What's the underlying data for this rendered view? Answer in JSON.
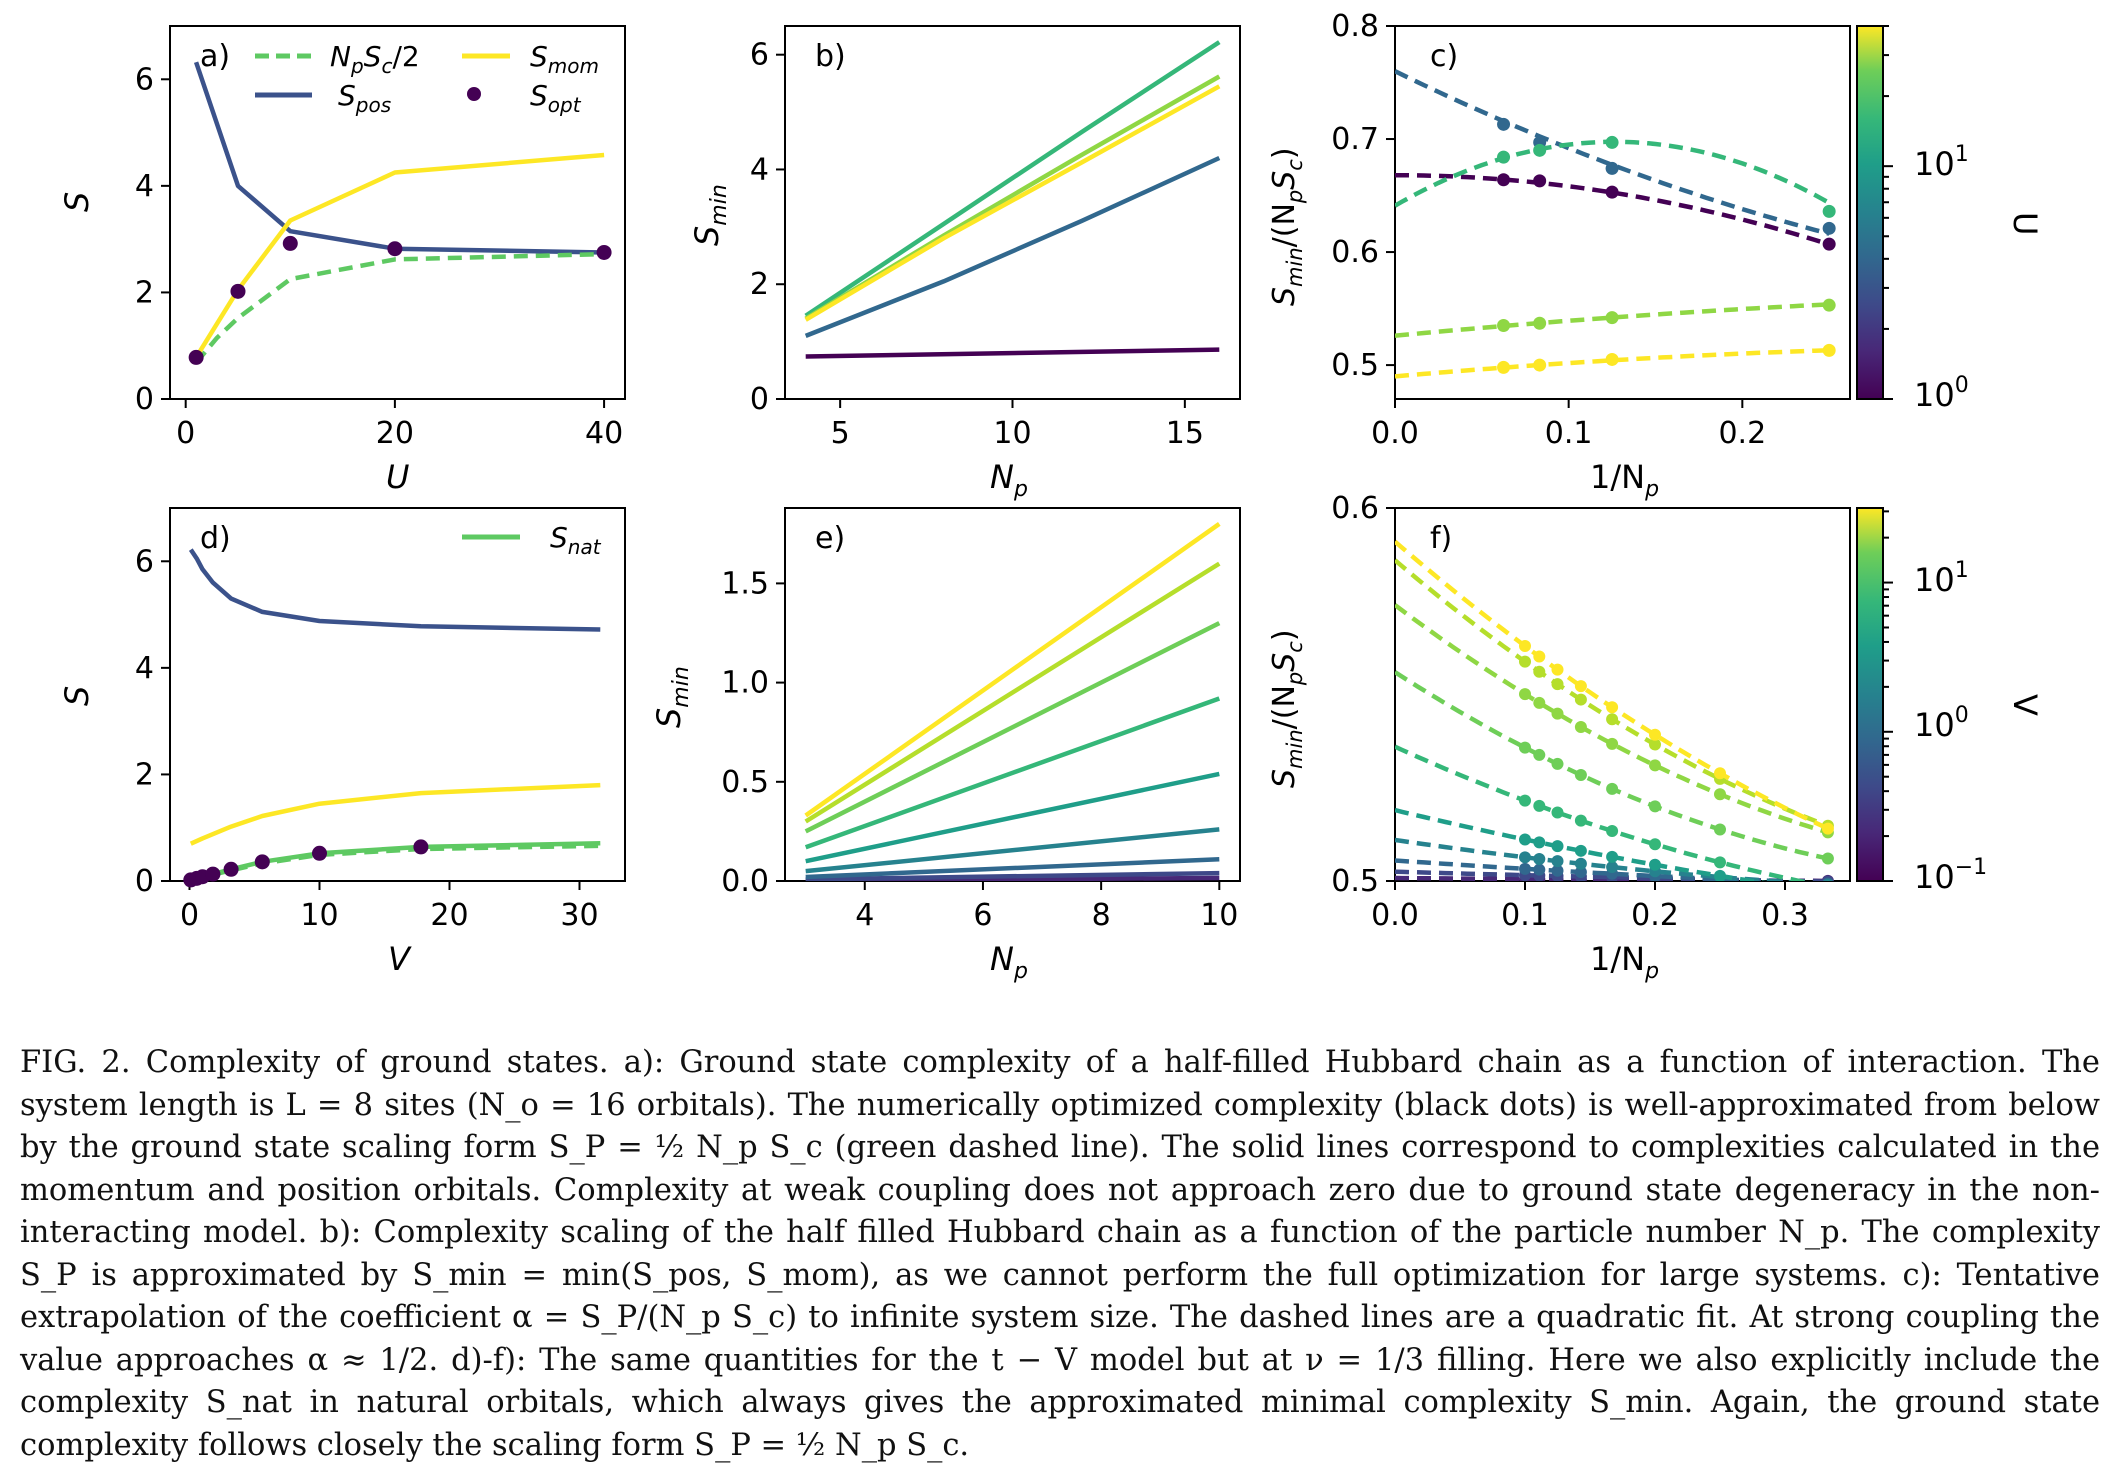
{
  "colors": {
    "posLine": "#3b528b",
    "momLine": "#fde725",
    "fitDashed": "#5ec962",
    "optDot": "#440154",
    "natLine": "#5ec962"
  },
  "caption": "FIG. 2. Complexity of ground states. a): Ground state complexity of a half-filled Hubbard chain as a function of interaction. The system length is L = 8 sites (N_o = 16 orbitals). The numerically optimized complexity (black dots) is well-approximated from below by the ground state scaling form S_P = ½ N_p S_c (green dashed line). The solid lines correspond to complexities calculated in the momentum and position orbitals. Complexity at weak coupling does not approach zero due to ground state degeneracy in the non-interacting model. b): Complexity scaling of the half filled Hubbard chain as a function of the particle number N_p. The complexity S_P is approximated by S_min = min(S_pos, S_mom), as we cannot perform the full optimization for large systems. c): Tentative extrapolation of the coefficient α = S_P/(N_p S_c) to infinite system size. The dashed lines are a quadratic fit. At strong coupling the value approaches α ≈ 1/2. d)-f): The same quantities for the t − V model but at ν = 1/3 filling. Here we also explicitly include the complexity S_nat in natural orbitals, which always gives the approximated minimal complexity S_min. Again, the ground state complexity follows closely the scaling form S_P = ½ N_p S_c.",
  "chart_data": [
    {
      "panel": "a)",
      "type": "line",
      "xlabel": "U",
      "ylabel": "S",
      "xlim": [
        -1.5,
        42
      ],
      "ylim": [
        0,
        7
      ],
      "xticks": [
        0,
        20,
        40
      ],
      "yticks": [
        0,
        2,
        4,
        6
      ],
      "legend": [
        "N_pS_c/2",
        "S_mom",
        "S_pos",
        "S_opt"
      ],
      "series": [
        {
          "name": "S_pos",
          "style": "solid",
          "color": "#3b528b",
          "x": [
            1,
            5,
            10,
            20,
            40
          ],
          "y": [
            6.32,
            4.0,
            3.15,
            2.82,
            2.75
          ]
        },
        {
          "name": "S_mom",
          "style": "solid",
          "color": "#fde725",
          "x": [
            1,
            5,
            10,
            20,
            40
          ],
          "y": [
            0.78,
            2.05,
            3.35,
            4.25,
            4.58
          ]
        },
        {
          "name": "N_pS_c/2",
          "style": "dashed",
          "color": "#5ec962",
          "x": [
            1,
            3,
            5,
            10,
            20,
            40
          ],
          "y": [
            0.68,
            1.15,
            1.52,
            2.25,
            2.62,
            2.72
          ]
        },
        {
          "name": "S_opt",
          "style": "dots",
          "color": "#440154",
          "x": [
            1,
            5,
            10,
            20,
            40
          ],
          "y": [
            0.78,
            2.02,
            2.92,
            2.82,
            2.75
          ]
        }
      ]
    },
    {
      "panel": "b)",
      "type": "line",
      "xlabel": "N_p",
      "ylabel": "S_min",
      "xlim": [
        3.4,
        16.6
      ],
      "ylim": [
        0,
        6.5
      ],
      "xticks": [
        5,
        10,
        15
      ],
      "yticks": [
        0,
        2,
        4,
        6
      ],
      "series": [
        {
          "name": "U=1",
          "color": "#440154",
          "x": [
            4,
            16
          ],
          "y": [
            0.74,
            0.86
          ]
        },
        {
          "name": "U=5",
          "color": "#31688e",
          "x": [
            4,
            8,
            12,
            16
          ],
          "y": [
            1.1,
            2.05,
            3.1,
            4.2
          ]
        },
        {
          "name": "U=10",
          "color": "#35b779",
          "x": [
            4,
            8,
            12,
            16
          ],
          "y": [
            1.45,
            3.05,
            4.65,
            6.22
          ]
        },
        {
          "name": "U=20",
          "color": "#8fd744",
          "x": [
            4,
            8,
            12,
            16
          ],
          "y": [
            1.4,
            2.85,
            4.25,
            5.62
          ]
        },
        {
          "name": "U=40",
          "color": "#fde725",
          "x": [
            4,
            8,
            12,
            16
          ],
          "y": [
            1.38,
            2.8,
            4.12,
            5.45
          ]
        }
      ]
    },
    {
      "panel": "c)",
      "type": "line",
      "xlabel": "1/N_p",
      "ylabel": "S_min/(N_pS_c)",
      "xlim": [
        0,
        0.262
      ],
      "ylim": [
        0.47,
        0.8
      ],
      "xticks": [
        0.0,
        0.1,
        0.2
      ],
      "yticks": [
        0.5,
        0.6,
        0.7,
        0.8
      ],
      "colorbar": {
        "label": "U",
        "ticks": [
          "10^0",
          "10^1"
        ],
        "range": [
          1,
          40
        ]
      },
      "series": [
        {
          "name": "U=1",
          "color": "#440154",
          "x": [
            0.0625,
            0.0833,
            0.125,
            0.25
          ],
          "y": [
            0.664,
            0.663,
            0.653,
            0.607
          ],
          "fit": [
            0.668,
            0,
            -0.98
          ]
        },
        {
          "name": "U=5",
          "color": "#31688e",
          "x": [
            0.0625,
            0.0833,
            0.125,
            0.25
          ],
          "y": [
            0.713,
            0.697,
            0.674,
            0.621
          ],
          "fit": [
            0.76,
            -0.75,
            0.7
          ]
        },
        {
          "name": "U=10",
          "color": "#35b779",
          "x": [
            0.0625,
            0.0833,
            0.125,
            0.25
          ],
          "y": [
            0.684,
            0.69,
            0.697,
            0.636
          ],
          "fit": [
            0.641,
            0.895,
            -3.54
          ]
        },
        {
          "name": "U=20",
          "color": "#8fd744",
          "x": [
            0.0625,
            0.0833,
            0.125,
            0.25
          ],
          "y": [
            0.535,
            0.537,
            0.542,
            0.553
          ],
          "fit": [
            0.526,
            0.146,
            -0.14
          ]
        },
        {
          "name": "U=40",
          "color": "#fde725",
          "x": [
            0.0625,
            0.0833,
            0.125,
            0.25
          ],
          "y": [
            0.498,
            0.5,
            0.505,
            0.513
          ],
          "fit": [
            0.49,
            0.135,
            -0.17
          ]
        }
      ]
    },
    {
      "panel": "d)",
      "type": "line",
      "xlabel": "V",
      "ylabel": "S",
      "xlim": [
        -1.5,
        33.5
      ],
      "ylim": [
        0,
        7
      ],
      "xticks": [
        0,
        10,
        20,
        30
      ],
      "yticks": [
        0,
        2,
        4,
        6
      ],
      "legend": [
        "S_nat"
      ],
      "series": [
        {
          "name": "S_pos",
          "color": "#3b528b",
          "style": "solid",
          "x": [
            0.1,
            0.56,
            1,
            1.8,
            3.2,
            5.6,
            10,
            17.8,
            31.6
          ],
          "y": [
            6.22,
            6.05,
            5.85,
            5.6,
            5.3,
            5.05,
            4.88,
            4.78,
            4.72
          ]
        },
        {
          "name": "S_mom",
          "color": "#fde725",
          "style": "solid",
          "x": [
            0.1,
            1,
            3.2,
            5.6,
            10,
            17.8,
            31.6
          ],
          "y": [
            0.7,
            0.8,
            1.02,
            1.22,
            1.45,
            1.65,
            1.8
          ]
        },
        {
          "name": "S_nat",
          "color": "#5ec962",
          "style": "solid",
          "x": [
            0.1,
            0.56,
            1,
            1.8,
            3.2,
            5.6,
            10,
            17.8,
            31.6
          ],
          "y": [
            0.02,
            0.05,
            0.08,
            0.13,
            0.22,
            0.36,
            0.52,
            0.64,
            0.71
          ]
        },
        {
          "name": "N_pS_c/2",
          "color": "#5ec962",
          "style": "dashed",
          "x": [
            0.1,
            1,
            3.2,
            5.6,
            10,
            17.8,
            31.6
          ],
          "y": [
            0.02,
            0.07,
            0.2,
            0.33,
            0.49,
            0.6,
            0.66
          ]
        },
        {
          "name": "S_opt",
          "color": "#440154",
          "style": "dots",
          "x": [
            0.1,
            0.56,
            1,
            1.8,
            3.2,
            5.6,
            10,
            17.8
          ],
          "y": [
            0.02,
            0.05,
            0.08,
            0.13,
            0.22,
            0.36,
            0.52,
            0.64
          ]
        }
      ]
    },
    {
      "panel": "e)",
      "type": "line",
      "xlabel": "N_p",
      "ylabel": "S_min",
      "xlim": [
        2.65,
        10.35
      ],
      "ylim": [
        0,
        1.88
      ],
      "xticks": [
        4,
        6,
        8,
        10
      ],
      "yticks": [
        0.0,
        0.5,
        1.0,
        1.5
      ],
      "series": [
        {
          "name": "V=31.6",
          "color": "#fde725",
          "x": [
            3,
            10
          ],
          "y": [
            0.33,
            1.8
          ]
        },
        {
          "name": "V=17.8",
          "color": "#b5de2b",
          "x": [
            3,
            10
          ],
          "y": [
            0.3,
            1.6
          ]
        },
        {
          "name": "V=10",
          "color": "#6ece58",
          "x": [
            3,
            10
          ],
          "y": [
            0.25,
            1.3
          ]
        },
        {
          "name": "V=5.6",
          "color": "#35b779",
          "x": [
            3,
            10
          ],
          "y": [
            0.17,
            0.92
          ]
        },
        {
          "name": "V=3.2",
          "color": "#1f9e89",
          "x": [
            3,
            10
          ],
          "y": [
            0.1,
            0.54
          ]
        },
        {
          "name": "V=1.8",
          "color": "#26828e",
          "x": [
            3,
            10
          ],
          "y": [
            0.05,
            0.26
          ]
        },
        {
          "name": "V=1",
          "color": "#31688e",
          "x": [
            3,
            10
          ],
          "y": [
            0.02,
            0.11
          ]
        },
        {
          "name": "V=0.56",
          "color": "#3e4989",
          "x": [
            3,
            10
          ],
          "y": [
            0.008,
            0.04
          ]
        },
        {
          "name": "V=0.1",
          "color": "#482878",
          "x": [
            3,
            10
          ],
          "y": [
            0.003,
            0.015
          ]
        }
      ]
    },
    {
      "panel": "f)",
      "type": "line",
      "xlabel": "1/N_p",
      "ylabel": "S_min/(N_pS_c)",
      "xlim": [
        0,
        0.35
      ],
      "ylim": [
        0.5,
        0.6
      ],
      "xticks": [
        0.0,
        0.1,
        0.2,
        0.3
      ],
      "yticks": [
        0.5,
        0.6
      ],
      "colorbar": {
        "label": "V",
        "ticks": [
          "10^1",
          "10^0",
          "10^-1"
        ],
        "range": [
          0.1,
          31.6
        ]
      },
      "series": [
        {
          "name": "V=31.6",
          "color": "#fde725",
          "a": 0.591,
          "b": -0.301,
          "c": 0.21
        },
        {
          "name": "V=17.8",
          "color": "#b5de2b",
          "a": 0.586,
          "b": -0.297,
          "c": 0.25
        },
        {
          "name": "V=10",
          "color": "#8fd744",
          "a": 0.574,
          "b": -0.263,
          "c": 0.24
        },
        {
          "name": "V=5.6",
          "color": "#6ece58",
          "a": 0.556,
          "b": -0.225,
          "c": 0.225
        },
        {
          "name": "V=3.2",
          "color": "#35b779",
          "a": 0.536,
          "b": -0.158,
          "c": 0.136
        },
        {
          "name": "V=1.8",
          "color": "#1f9e89",
          "a": 0.519,
          "b": -0.084,
          "c": 0.054
        },
        {
          "name": "V=1",
          "color": "#26828e",
          "a": 0.511,
          "b": -0.051,
          "c": 0.045
        },
        {
          "name": "V=0.56",
          "color": "#31688e",
          "a": 0.5055,
          "b": -0.024,
          "c": 0.016
        },
        {
          "name": "V=0.32",
          "color": "#3e4989",
          "a": 0.5025,
          "b": -0.01,
          "c": 0.006
        },
        {
          "name": "V=0.1",
          "color": "#482878",
          "a": 0.5008,
          "b": -0.003,
          "c": 0.002
        }
      ],
      "x_points": [
        0.1,
        0.111,
        0.125,
        0.143,
        0.167,
        0.2,
        0.25,
        0.333
      ]
    }
  ],
  "labels": {
    "a_S": "S",
    "a_U": "U",
    "b_S": "S",
    "b_Ssub": "min",
    "b_N": "N",
    "b_Nsub": "p",
    "c_y": "S",
    "c_ysub": "min",
    "c_yrest": "/(N",
    "c_ysub2": "p",
    "c_yrest2": "S",
    "c_ysub3": "c",
    "c_yend": ")",
    "c_x": "1/N",
    "c_xsub": "p",
    "c_cb": "U",
    "d_S": "S",
    "d_V": "V",
    "e_S": "S",
    "e_Ssub": "min",
    "e_N": "N",
    "e_Nsub": "p",
    "f_cb": "V",
    "leg_NpSc": "N",
    "leg_NpSc_p": "p",
    "leg_NpSc_S": "S",
    "leg_NpSc_c": "c",
    "leg_NpSc_2": "/2",
    "leg_Smom": "S",
    "leg_Smom_sub": "mom",
    "leg_Spos": "S",
    "leg_Spos_sub": "pos",
    "leg_Sopt": "S",
    "leg_Sopt_sub": "opt",
    "leg_Snat": "S",
    "leg_Snat_sub": "nat",
    "panel_a": "a)",
    "panel_b": "b)",
    "panel_c": "c)",
    "panel_d": "d)",
    "panel_e": "e)",
    "panel_f": "f)",
    "cb_10": "10",
    "cb_1": "1",
    "cb_0": "0",
    "cb_m1": "−1"
  }
}
